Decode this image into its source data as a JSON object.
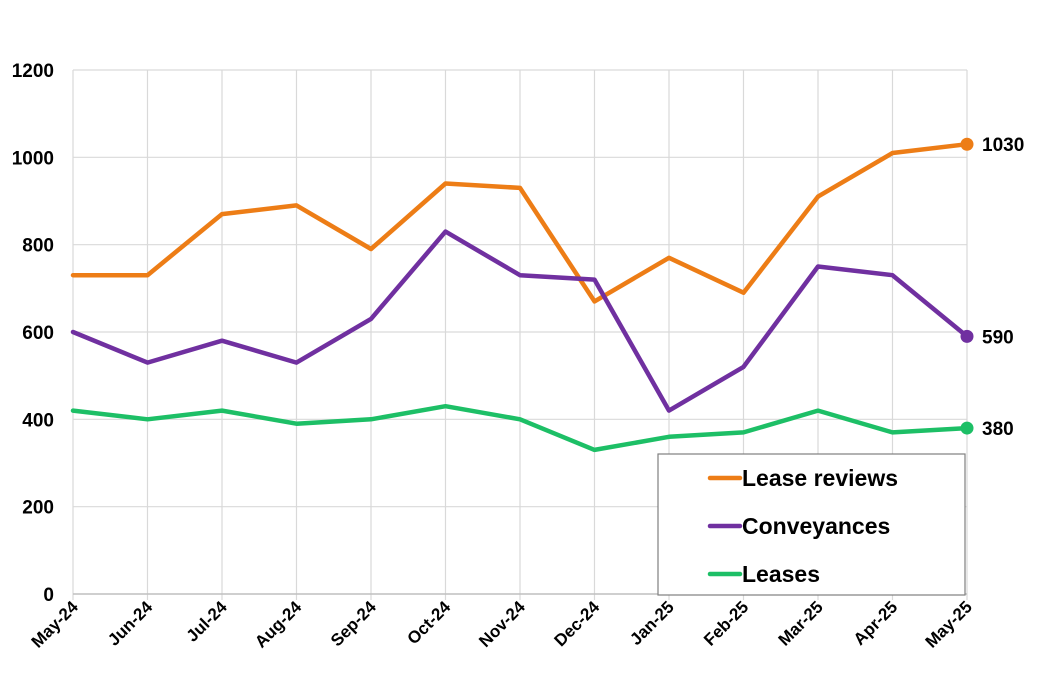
{
  "chart_data": {
    "type": "line",
    "title": "",
    "xlabel": "",
    "ylabel": "",
    "ylim": [
      0,
      1200
    ],
    "yticks": [
      0,
      200,
      400,
      600,
      800,
      1000,
      1200
    ],
    "grid": "vertical and horizontal",
    "legend_position": "bottom-right",
    "categories": [
      "May-24",
      "Jun-24",
      "Jul-24",
      "Aug-24",
      "Sep-24",
      "Oct-24",
      "Nov-24",
      "Dec-24",
      "Jan-25",
      "Feb-25",
      "Mar-25",
      "Apr-25",
      "May-25"
    ],
    "series": [
      {
        "name": "Lease reviews",
        "color": "#ED7D16",
        "values": [
          730,
          730,
          870,
          890,
          790,
          940,
          930,
          670,
          770,
          690,
          910,
          1010,
          1030
        ],
        "end_label": "1030"
      },
      {
        "name": "Conveyances",
        "color": "#7030A0",
        "values": [
          600,
          530,
          580,
          530,
          630,
          830,
          730,
          720,
          420,
          520,
          750,
          730,
          590
        ],
        "end_label": "590"
      },
      {
        "name": "Leases",
        "color": "#1DBF66",
        "values": [
          420,
          400,
          420,
          390,
          400,
          430,
          400,
          330,
          360,
          370,
          420,
          370,
          380
        ],
        "end_label": "380"
      }
    ]
  }
}
